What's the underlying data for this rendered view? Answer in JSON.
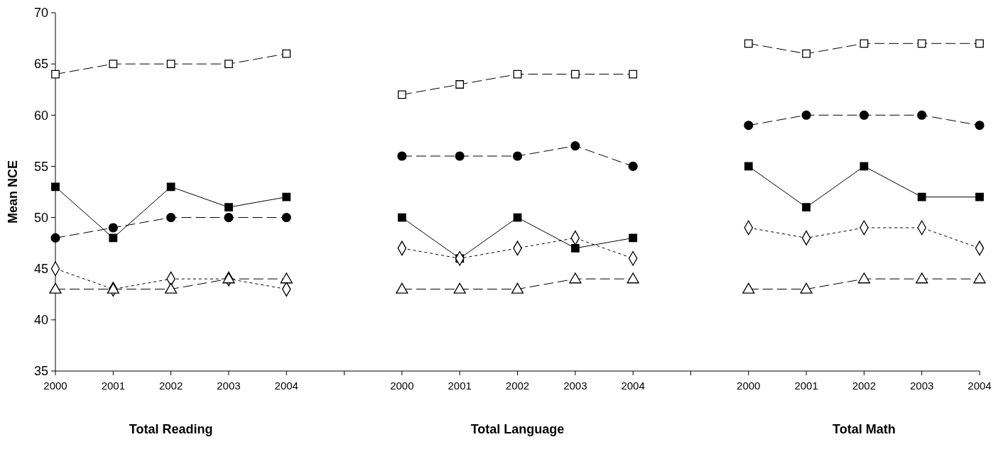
{
  "chart_data": {
    "type": "line",
    "ylabel": "Mean NCE",
    "categories": [
      "2000",
      "2001",
      "2002",
      "2003",
      "2004",
      null,
      "2000",
      "2001",
      "2002",
      "2003",
      "2004",
      null,
      "2000",
      "2001",
      "2002",
      "2003",
      "2004"
    ],
    "ylim": [
      35,
      70
    ],
    "yticks": [
      35,
      40,
      45,
      50,
      55,
      60,
      65,
      70
    ],
    "annotations": [
      "Total Reading",
      "Total Language",
      "Total Math"
    ],
    "series": [
      {
        "color": "#000000",
        "marker": "square",
        "colors": [
          "#ffffff",
          "#ffffff",
          "#ffffff",
          "#ffffff",
          "#ffffff",
          null,
          "#ffffff",
          "#ffffff",
          "#ffffff",
          "#ffffff",
          "#ffffff",
          null,
          "#ffffff",
          "#ffffff",
          "#ffffff",
          "#ffffff",
          "#ffffff"
        ],
        "line_style": "dashed",
        "values": [
          64,
          65,
          65,
          65,
          66,
          null,
          62,
          63,
          64,
          64,
          64,
          null,
          67,
          66,
          67,
          67,
          67
        ]
      },
      {
        "color": "#000000",
        "marker": "circle",
        "line_style": "dashed",
        "values": [
          48,
          49,
          50,
          50,
          50,
          null,
          56,
          56,
          56,
          57,
          55,
          null,
          59,
          60,
          60,
          60,
          59
        ]
      },
      {
        "color": "#000000",
        "marker": "square",
        "line_style": "solid",
        "values": [
          53,
          48,
          53,
          51,
          52,
          null,
          50,
          46,
          50,
          47,
          48,
          null,
          55,
          51,
          55,
          52,
          52
        ]
      },
      {
        "color": "#000000",
        "marker": "diamond",
        "colors": [
          "#ffffff",
          "#ffffff",
          "#ffffff",
          "#ffffff",
          "#ffffff",
          null,
          "#ffffff",
          "#ffffff",
          "#ffffff",
          "#ffffff",
          "#ffffff",
          null,
          "#ffffff",
          "#ffffff",
          "#ffffff",
          "#ffffff",
          "#ffffff"
        ],
        "line_style": "dotted",
        "values": [
          45,
          43,
          44,
          44,
          43,
          null,
          47,
          46,
          47,
          48,
          46,
          null,
          49,
          48,
          49,
          49,
          47
        ]
      },
      {
        "color": "#000000",
        "marker": "triangle",
        "colors": [
          "#ffffff",
          "#ffffff",
          "#ffffff",
          "#ffffff",
          "#ffffff",
          null,
          "#ffffff",
          "#ffffff",
          "#ffffff",
          "#ffffff",
          "#ffffff",
          null,
          "#ffffff",
          "#ffffff",
          "#ffffff",
          "#ffffff",
          "#ffffff"
        ],
        "line_style": "dashed",
        "values": [
          43,
          43,
          43,
          44,
          44,
          null,
          43,
          43,
          43,
          44,
          44,
          null,
          43,
          43,
          44,
          44,
          44
        ]
      }
    ]
  }
}
